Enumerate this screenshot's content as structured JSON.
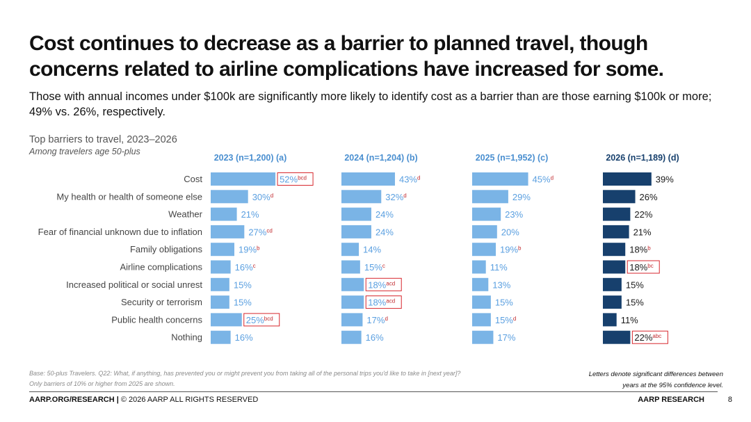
{
  "title": "Cost continues to decrease as a barrier to planned travel, though concerns related to airline complications have increased for some.",
  "subtitle": "Those with annual incomes under $100k are significantly more likely to identify cost as a barrier than are those earning $100k or more; 49% vs. 26%, respectively.",
  "chart_data": {
    "type": "bar",
    "orientation": "horizontal",
    "title": "Top barriers to travel, 2023–2026",
    "subtitle": "Among travelers age 50-plus",
    "categories": [
      "Cost",
      "My health or health of someone else",
      "Weather",
      "Fear of financial unknown due to inflation",
      "Family obligations",
      "Airline complications",
      "Increased political or social unrest",
      "Security or terrorism",
      "Public health concerns",
      "Nothing"
    ],
    "series": [
      {
        "name": "2023 (n=1,200) (a)",
        "color": "#7ab4e6",
        "values": [
          52,
          30,
          21,
          27,
          19,
          16,
          15,
          15,
          25,
          16
        ],
        "sig": [
          "bcd",
          "d",
          "",
          "cd",
          "b",
          "c",
          "",
          "",
          "bcd",
          ""
        ],
        "highlight": [
          true,
          false,
          false,
          false,
          false,
          false,
          false,
          false,
          true,
          false
        ]
      },
      {
        "name": "2024 (n=1,204) (b)",
        "color": "#7ab4e6",
        "values": [
          43,
          32,
          24,
          24,
          14,
          15,
          18,
          18,
          17,
          16
        ],
        "sig": [
          "d",
          "d",
          "",
          "",
          "",
          "c",
          "acd",
          "acd",
          "d",
          ""
        ],
        "highlight": [
          false,
          false,
          false,
          false,
          false,
          false,
          true,
          true,
          false,
          false
        ]
      },
      {
        "name": "2025 (n=1,952) (c)",
        "color": "#7ab4e6",
        "values": [
          45,
          29,
          23,
          20,
          19,
          11,
          13,
          15,
          15,
          17
        ],
        "sig": [
          "d",
          "",
          "",
          "",
          "b",
          "",
          "",
          "",
          "d",
          ""
        ],
        "highlight": [
          false,
          false,
          false,
          false,
          false,
          false,
          false,
          false,
          false,
          false
        ]
      },
      {
        "name": "2026 (n=1,189) (d)",
        "color": "#17406d",
        "values": [
          39,
          26,
          22,
          21,
          18,
          18,
          15,
          15,
          11,
          22
        ],
        "sig": [
          "",
          "",
          "",
          "",
          "b",
          "bc",
          "",
          "",
          "",
          "abc"
        ],
        "highlight": [
          false,
          false,
          false,
          false,
          false,
          true,
          false,
          false,
          false,
          true
        ]
      }
    ],
    "value_suffix": "%",
    "xlim": [
      0,
      60
    ]
  },
  "footnotes": {
    "base": "Base: 50-plus Travelers. Q22: What, if anything, has prevented you or might prevent you from taking all of the personal trips you'd like to take in [next year]?",
    "note": "Only barriers of 10% or higher from 2025 are shown.",
    "legend_line1": "Letters denote significant differences between",
    "legend_line2": "years at the 95% confidence level."
  },
  "footer": {
    "left_bold": "AARP.ORG/RESEARCH |",
    "left_rest": " © 2026 AARP ALL RIGHTS RESERVED",
    "right": "AARP RESEARCH",
    "page": "8"
  }
}
